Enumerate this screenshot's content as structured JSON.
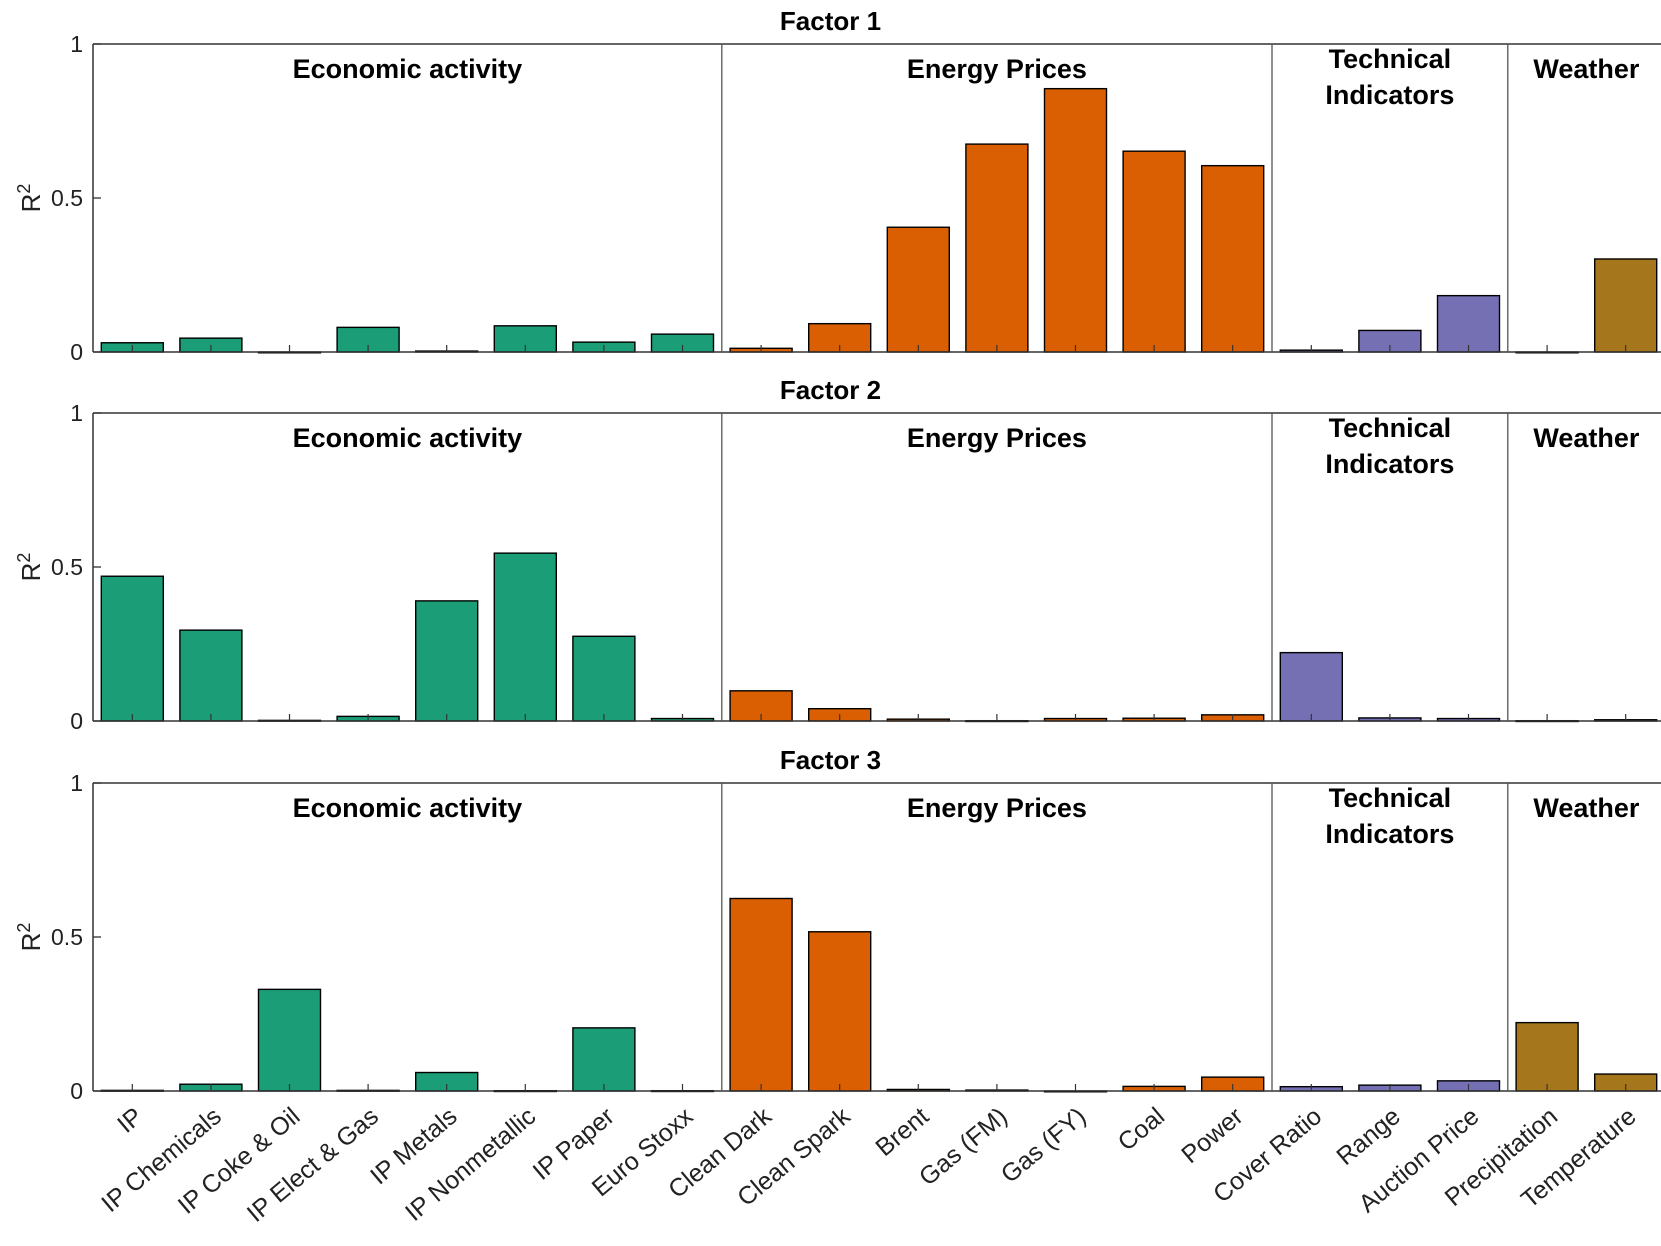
{
  "chart_data": {
    "type": "bar",
    "categories": [
      "IP",
      "IP Chemicals",
      "IP Coke & Oil",
      "IP Elect & Gas",
      "IP Metals",
      "IP Nonmetallic",
      "IP Paper",
      "Euro Stoxx",
      "Clean Dark",
      "Clean Spark",
      "Brent",
      "Gas (FM)",
      "Gas (FY)",
      "Coal",
      "Power",
      "Cover Ratio",
      "Range",
      "Auction Price",
      "Precipitation",
      "Temperature"
    ],
    "groups": [
      {
        "label": "Economic activity",
        "lines": [
          "Economic activity"
        ],
        "start": 0,
        "end": 7,
        "color": "#1b9e77"
      },
      {
        "label": "Energy Prices",
        "lines": [
          "Energy Prices"
        ],
        "start": 8,
        "end": 14,
        "color": "#d95f02"
      },
      {
        "label": "Technical Indicators",
        "lines": [
          "Technical",
          "Indicators"
        ],
        "start": 15,
        "end": 17,
        "color": "#7570b3"
      },
      {
        "label": "Weather",
        "lines": [
          "Weather"
        ],
        "start": 18,
        "end": 19,
        "color": "#a6761d"
      }
    ],
    "panels": [
      {
        "title": "Factor 1",
        "ylabel": "R",
        "ylabel_sup": "2",
        "values": [
          0.03,
          0.045,
          0.0,
          0.08,
          0.003,
          0.085,
          0.032,
          0.058,
          0.012,
          0.092,
          0.405,
          0.675,
          0.855,
          0.652,
          0.605,
          0.006,
          0.07,
          0.183,
          0.0,
          0.302
        ]
      },
      {
        "title": "Factor 2",
        "ylabel": "R",
        "ylabel_sup": "2",
        "values": [
          0.47,
          0.295,
          0.002,
          0.015,
          0.39,
          0.545,
          0.275,
          0.008,
          0.098,
          0.04,
          0.006,
          0.001,
          0.008,
          0.009,
          0.02,
          0.222,
          0.01,
          0.008,
          0.001,
          0.004
        ]
      },
      {
        "title": "Factor 3",
        "ylabel": "R",
        "ylabel_sup": "2",
        "values": [
          0.002,
          0.022,
          0.33,
          0.002,
          0.06,
          0.001,
          0.205,
          0.001,
          0.625,
          0.517,
          0.005,
          0.003,
          0.0,
          0.015,
          0.045,
          0.014,
          0.019,
          0.033,
          0.222,
          0.055
        ]
      }
    ],
    "ylim": [
      0,
      1
    ],
    "yticks": [
      "0",
      "0.5",
      "1"
    ],
    "ytick_values": [
      0,
      0.5,
      1
    ],
    "xlabel": "",
    "grid": false
  }
}
